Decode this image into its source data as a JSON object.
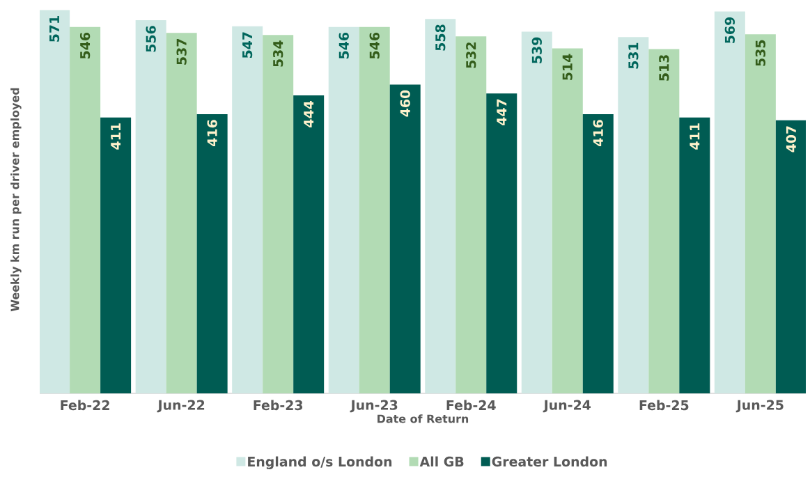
{
  "chart_data": {
    "type": "bar",
    "xlabel": "Date of Return",
    "ylabel": "Weekly km run per driver employed",
    "categories": [
      "Feb-22",
      "Jun-22",
      "Feb-23",
      "Jun-23",
      "Feb-24",
      "Jun-24",
      "Feb-25",
      "Jun-25"
    ],
    "series": [
      {
        "name": "England o/s London",
        "color": "#cfe8e4",
        "values": [
          571,
          556,
          547,
          546,
          558,
          539,
          531,
          569
        ]
      },
      {
        "name": "All GB",
        "color": "#b2dbb4",
        "values": [
          546,
          537,
          534,
          546,
          532,
          514,
          513,
          535
        ]
      },
      {
        "name": "Greater London",
        "color": "#005c53",
        "values": [
          411,
          416,
          444,
          460,
          447,
          416,
          411,
          407
        ]
      }
    ],
    "data_labels": true,
    "legend": "bottom"
  }
}
